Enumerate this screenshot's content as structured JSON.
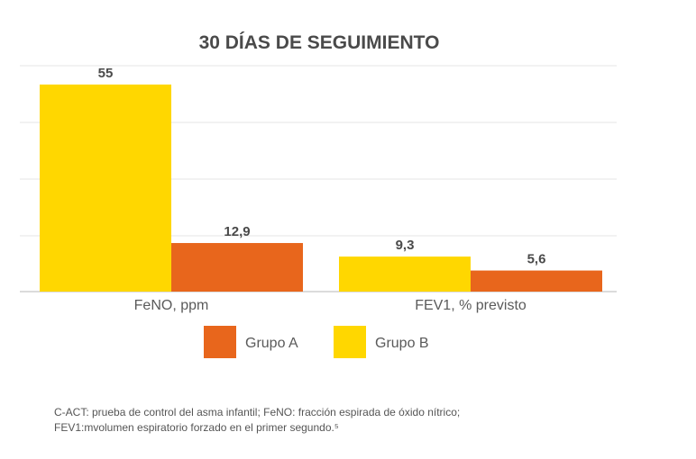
{
  "chart_data": {
    "type": "bar",
    "title": "30 DÍAS DE SEGUIMIENTO",
    "categories": [
      "FeNO, ppm",
      "FEV1, % previsto"
    ],
    "series": [
      {
        "name": "Grupo B",
        "values": [
          55,
          9.3
        ],
        "labels": [
          "55",
          "9,3"
        ],
        "color": "#ffd700"
      },
      {
        "name": "Grupo A",
        "values": [
          12.9,
          5.6
        ],
        "labels": [
          "12,9",
          "5,6"
        ],
        "color": "#e8661c"
      }
    ],
    "legend": [
      {
        "name": "Grupo A",
        "color": "#e8661c"
      },
      {
        "name": "Grupo B",
        "color": "#ffd700"
      }
    ],
    "ylim": [
      0,
      60
    ],
    "grid": true,
    "legend_position": "bottom",
    "xlabel": "",
    "ylabel": ""
  },
  "footnote": {
    "line1": "C-ACT: prueba de control del asma infantil; FeNO: fracción espirada de óxido nítrico;",
    "line2": "FEV1:mvolumen espiratorio forzado en el primer segundo.⁵"
  }
}
